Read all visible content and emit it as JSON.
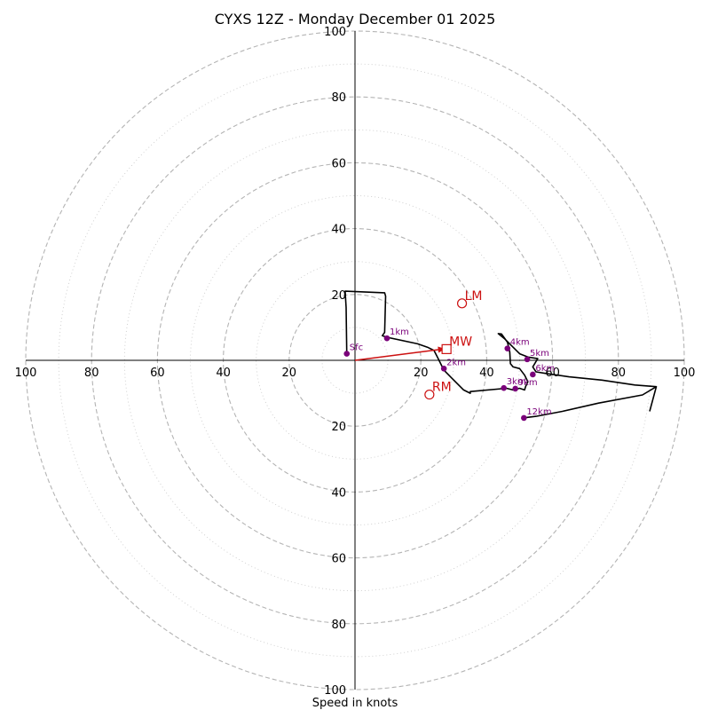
{
  "chart_data": {
    "type": "hodograph",
    "title": "CYXS 12Z - Monday December 01 2025",
    "xlabel": "Speed in knots",
    "units": "knots",
    "range": [
      -100,
      100
    ],
    "ring_labels": [
      "20",
      "40",
      "60",
      "80",
      "100"
    ],
    "ring_values": [
      20,
      40,
      60,
      80,
      100
    ],
    "colors": {
      "trace": "#000000",
      "height_marker": "#7a007a",
      "storm_motion": "#cc1111",
      "major_ring": "#b4b4b4",
      "minor_ring": "#cccccc",
      "axis": "#000000"
    },
    "trace": [
      [
        -2.5,
        2.5
      ],
      [
        -2.7,
        16
      ],
      [
        -3,
        21
      ],
      [
        9,
        20.5
      ],
      [
        9.3,
        19.5
      ],
      [
        9,
        8.5
      ],
      [
        8.3,
        7.5
      ],
      [
        9.7,
        7
      ],
      [
        19,
        5
      ],
      [
        22,
        4
      ],
      [
        24,
        3
      ],
      [
        25,
        1
      ],
      [
        27,
        -3
      ],
      [
        30,
        -6
      ],
      [
        33,
        -9
      ],
      [
        35,
        -10
      ],
      [
        35,
        -9.5
      ],
      [
        46,
        -8.5
      ],
      [
        48,
        -9
      ],
      [
        50,
        -8.5
      ],
      [
        51.5,
        -9
      ],
      [
        51.8,
        -8
      ],
      [
        52.5,
        -6.5
      ],
      [
        51.5,
        -4.5
      ],
      [
        50,
        -2.5
      ],
      [
        48,
        -2
      ],
      [
        47.2,
        -1
      ],
      [
        47,
        2.5
      ],
      [
        46.3,
        5.5
      ],
      [
        44.5,
        8
      ],
      [
        43.5,
        8.1
      ],
      [
        45.5,
        6.5
      ],
      [
        50,
        2
      ],
      [
        52.5,
        1
      ],
      [
        55.5,
        0.5
      ],
      [
        54,
        -2
      ],
      [
        55,
        -3.5
      ],
      [
        58,
        -4
      ],
      [
        65,
        -5
      ],
      [
        75,
        -6
      ],
      [
        85,
        -7.5
      ],
      [
        91.5,
        -8
      ],
      [
        87.3,
        -10.5
      ],
      [
        74,
        -13
      ],
      [
        63,
        -15.5
      ],
      [
        55,
        -17
      ],
      [
        51,
        -17.5
      ]
    ],
    "trace_end_hook": [
      [
        91.5,
        -8
      ],
      [
        89.5,
        -15.5
      ]
    ],
    "height_markers": [
      {
        "label": "Sfc",
        "u": -2.5,
        "v": 2.0
      },
      {
        "label": "1km",
        "u": 9.7,
        "v": 6.7
      },
      {
        "label": "2km",
        "u": 27,
        "v": -2.5
      },
      {
        "label": "3km",
        "u": 45.2,
        "v": -8.4
      },
      {
        "label": "4km",
        "u": 46.3,
        "v": 3.6
      },
      {
        "label": "5km",
        "u": 52.3,
        "v": 0.3
      },
      {
        "label": "6km",
        "u": 54,
        "v": -4.3
      },
      {
        "label": "9km",
        "u": 48.7,
        "v": -8.6
      },
      {
        "label": "12km",
        "u": 51.3,
        "v": -17.5
      }
    ],
    "storm_motion": [
      {
        "label": "LM",
        "u": 32.5,
        "v": 17.3,
        "marker": "circle"
      },
      {
        "label": "MW",
        "u": 27.8,
        "v": 3.4,
        "marker": "square"
      },
      {
        "label": "RM",
        "u": 22.6,
        "v": -10.4,
        "marker": "circle"
      }
    ],
    "mean_wind_vector": {
      "from": [
        0,
        0
      ],
      "to": [
        27.4,
        3.5
      ]
    }
  }
}
